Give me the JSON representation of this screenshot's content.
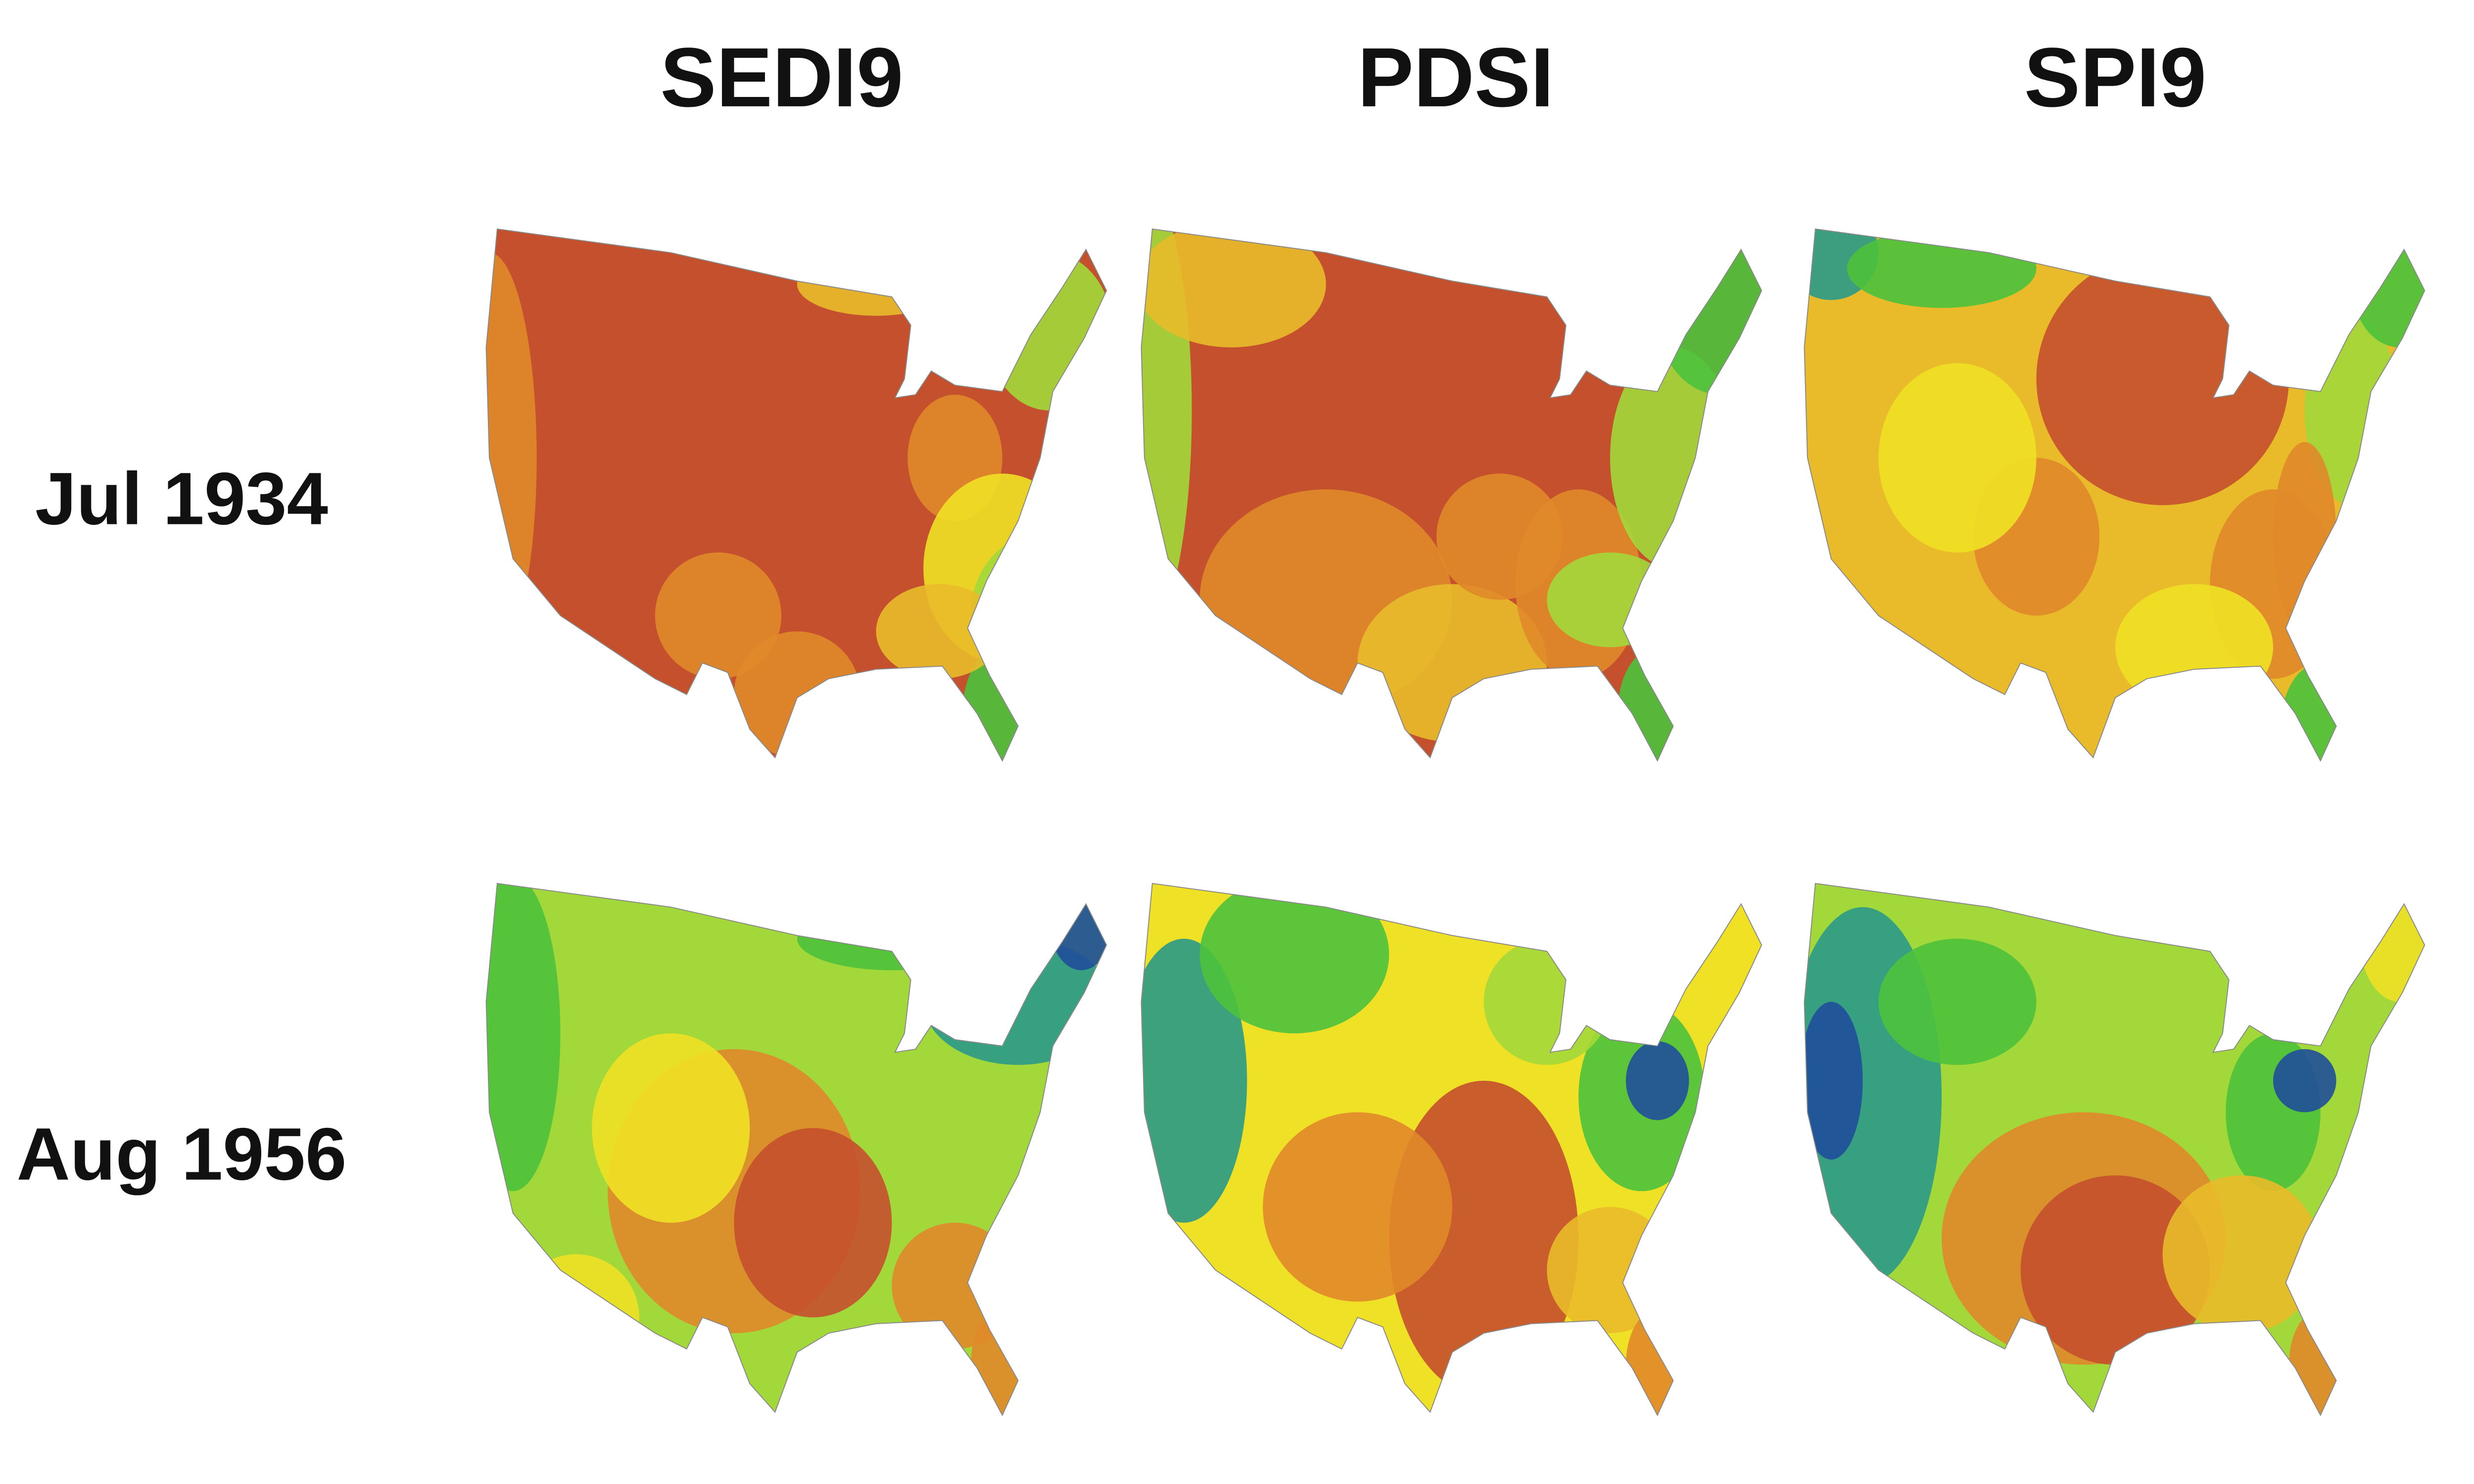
{
  "columns": [
    "SEDI9",
    "PDSI",
    "SPI9"
  ],
  "rows": [
    "Jul 1934",
    "Aug 1956"
  ]
}
